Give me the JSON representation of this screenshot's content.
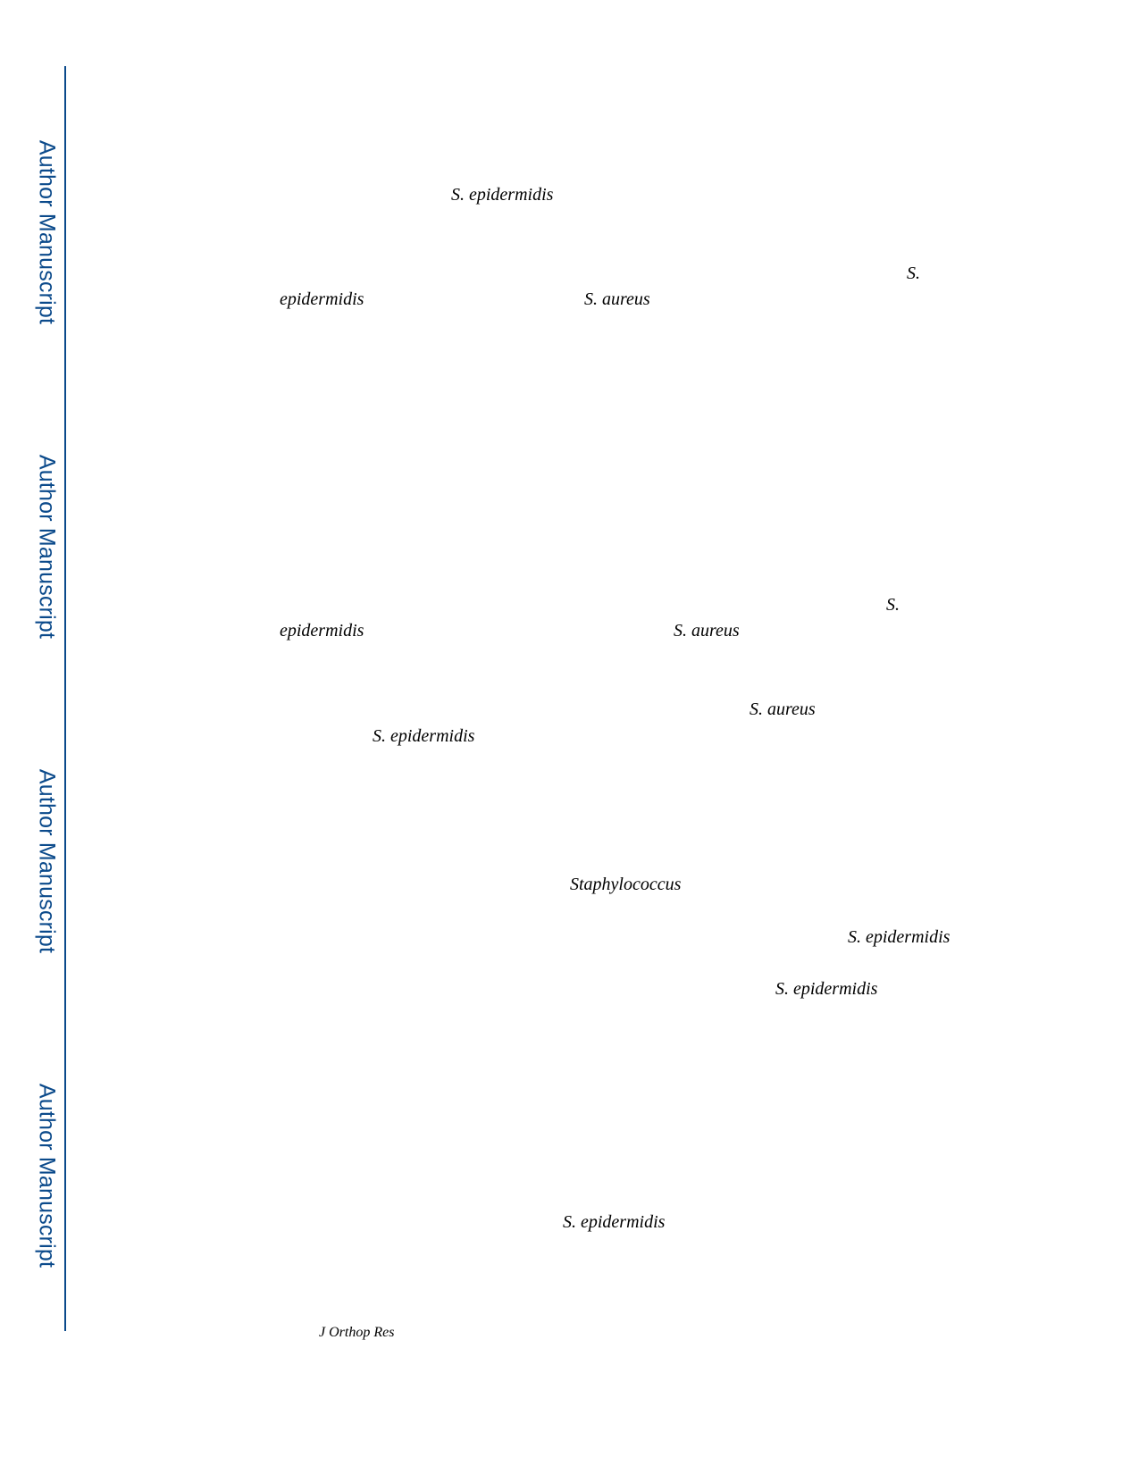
{
  "watermark": {
    "label": "Author Manuscript",
    "repeats": [
      "Author Manuscript",
      "Author Manuscript",
      "Author Manuscript",
      "Author Manuscript"
    ],
    "color": "#0b4a8b"
  },
  "text_fragments": [
    "S. epidermidis",
    "S.",
    "epidermidis",
    "S. aureus",
    "S.",
    "epidermidis",
    "S. aureus",
    "S. aureus",
    "S. epidermidis",
    "Staphylococcus",
    "S. epidermidis",
    "S. epidermidis",
    "S. epidermidis"
  ],
  "footer": {
    "journal": "J Orthop Res"
  }
}
